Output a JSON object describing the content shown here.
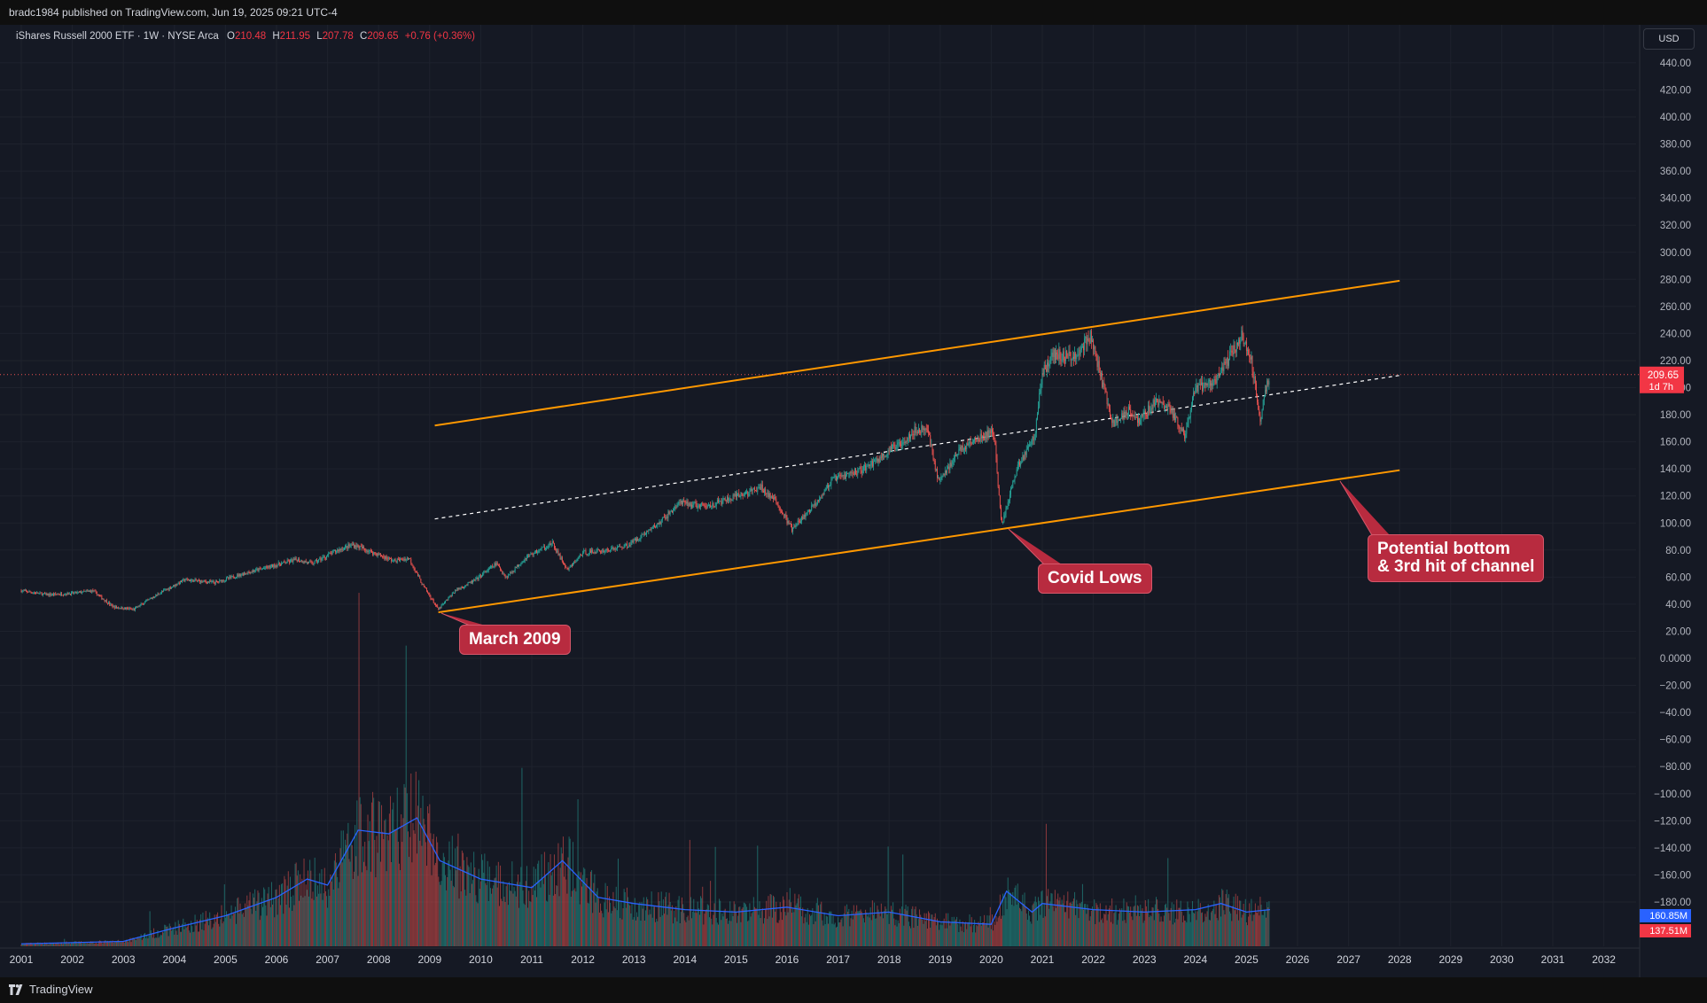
{
  "header": {
    "published": "bradc1984 published on TradingView.com, Jun 19, 2025 09:21 UTC-4"
  },
  "legend": {
    "title": "iShares Russell 2000 ETF · 1W · NYSE Arca",
    "o_label": "O",
    "o": "210.48",
    "h_label": "H",
    "h": "211.95",
    "l_label": "L",
    "l": "207.78",
    "c_label": "C",
    "c": "209.65",
    "change": "+0.76 (+0.36%)"
  },
  "currency_button": "USD",
  "price_tag": {
    "price": "209.65",
    "countdown": "1d 7h"
  },
  "volume_tags": {
    "ma": "160.85M",
    "volume": "137.51M"
  },
  "annotations": {
    "march": "March 2009",
    "covid": "Covid Lows",
    "potential": "Potential bottom\n& 3rd hit of channel"
  },
  "footer": {
    "brand": "TradingView"
  },
  "colors": {
    "up": "#26a69a",
    "down": "#ef5350",
    "channel": "#ff9800",
    "volume_ma": "#2962ff",
    "background": "#151924"
  },
  "chart_data": {
    "type": "candlestick",
    "symbol": "iShares Russell 2000 ETF",
    "timeframe": "1W",
    "x_ticks": [
      "2001",
      "2002",
      "2003",
      "2004",
      "2005",
      "2006",
      "2007",
      "2008",
      "2009",
      "2010",
      "2011",
      "2012",
      "2013",
      "2014",
      "2015",
      "2016",
      "2017",
      "2018",
      "2019",
      "2020",
      "2021",
      "2022",
      "2023",
      "2024",
      "2025",
      "2026",
      "2027",
      "2028",
      "2029",
      "2030",
      "2031",
      "2032"
    ],
    "y_ticks": [
      "440.00",
      "420.00",
      "400.00",
      "380.00",
      "360.00",
      "340.00",
      "320.00",
      "300.00",
      "280.00",
      "260.00",
      "240.00",
      "220.00",
      "200.00",
      "180.00",
      "160.00",
      "140.00",
      "120.00",
      "100.00",
      "80.00",
      "60.00",
      "40.00",
      "20.00",
      "0.0000",
      "−20.00",
      "−40.00",
      "−60.00",
      "−80.00",
      "−100.00",
      "−120.00",
      "−140.00",
      "−160.00",
      "−180.00"
    ],
    "ylim": [
      -190,
      450
    ],
    "last_price": 209.65,
    "price_path": [
      [
        2001.0,
        50
      ],
      [
        2001.5,
        47
      ],
      [
        2002.0,
        48
      ],
      [
        2002.4,
        50
      ],
      [
        2002.8,
        38
      ],
      [
        2003.2,
        36
      ],
      [
        2003.7,
        48
      ],
      [
        2004.2,
        58
      ],
      [
        2004.8,
        56
      ],
      [
        2005.3,
        62
      ],
      [
        2005.9,
        68
      ],
      [
        2006.4,
        73
      ],
      [
        2006.7,
        70
      ],
      [
        2007.2,
        80
      ],
      [
        2007.5,
        84
      ],
      [
        2007.9,
        78
      ],
      [
        2008.3,
        72
      ],
      [
        2008.6,
        74
      ],
      [
        2008.85,
        55
      ],
      [
        2009.17,
        36
      ],
      [
        2009.5,
        50
      ],
      [
        2009.9,
        58
      ],
      [
        2010.3,
        70
      ],
      [
        2010.5,
        60
      ],
      [
        2010.9,
        75
      ],
      [
        2011.4,
        85
      ],
      [
        2011.7,
        65
      ],
      [
        2012.0,
        78
      ],
      [
        2012.5,
        80
      ],
      [
        2012.9,
        84
      ],
      [
        2013.5,
        100
      ],
      [
        2013.9,
        115
      ],
      [
        2014.4,
        112
      ],
      [
        2014.9,
        118
      ],
      [
        2015.5,
        126
      ],
      [
        2015.8,
        115
      ],
      [
        2016.1,
        95
      ],
      [
        2016.5,
        112
      ],
      [
        2016.9,
        132
      ],
      [
        2017.5,
        140
      ],
      [
        2017.9,
        150
      ],
      [
        2018.5,
        168
      ],
      [
        2018.75,
        170
      ],
      [
        2018.97,
        130
      ],
      [
        2019.4,
        155
      ],
      [
        2019.9,
        165
      ],
      [
        2020.05,
        168
      ],
      [
        2020.2,
        98
      ],
      [
        2020.5,
        140
      ],
      [
        2020.85,
        165
      ],
      [
        2021.0,
        210
      ],
      [
        2021.2,
        225
      ],
      [
        2021.6,
        222
      ],
      [
        2021.95,
        238
      ],
      [
        2022.2,
        200
      ],
      [
        2022.4,
        172
      ],
      [
        2022.7,
        185
      ],
      [
        2022.9,
        175
      ],
      [
        2023.2,
        190
      ],
      [
        2023.5,
        185
      ],
      [
        2023.8,
        163
      ],
      [
        2024.0,
        200
      ],
      [
        2024.4,
        205
      ],
      [
        2024.6,
        218
      ],
      [
        2024.9,
        238
      ],
      [
        2025.1,
        220
      ],
      [
        2025.27,
        175
      ],
      [
        2025.38,
        200
      ],
      [
        2025.46,
        209.65
      ]
    ],
    "channel": {
      "upper": [
        [
          2009.1,
          172
        ],
        [
          2028.0,
          279
        ]
      ],
      "middle": [
        [
          2009.1,
          103
        ],
        [
          2028.0,
          209
        ]
      ],
      "lower": [
        [
          2009.17,
          34
        ],
        [
          2028.0,
          139
        ]
      ]
    },
    "volume_ma_path": [
      [
        2001,
        2
      ],
      [
        2003,
        4
      ],
      [
        2004,
        15
      ],
      [
        2005,
        25
      ],
      [
        2006,
        40
      ],
      [
        2006.6,
        55
      ],
      [
        2007,
        50
      ],
      [
        2007.6,
        95
      ],
      [
        2008.2,
        92
      ],
      [
        2008.75,
        105
      ],
      [
        2009.2,
        70
      ],
      [
        2010,
        55
      ],
      [
        2011,
        48
      ],
      [
        2011.6,
        70
      ],
      [
        2012.3,
        40
      ],
      [
        2013,
        35
      ],
      [
        2014,
        30
      ],
      [
        2015,
        28
      ],
      [
        2016,
        32
      ],
      [
        2017,
        25
      ],
      [
        2018,
        28
      ],
      [
        2019,
        20
      ],
      [
        2020,
        18
      ],
      [
        2020.3,
        45
      ],
      [
        2020.8,
        28
      ],
      [
        2021,
        35
      ],
      [
        2022,
        30
      ],
      [
        2023,
        28
      ],
      [
        2024,
        30
      ],
      [
        2024.5,
        35
      ],
      [
        2025,
        28
      ],
      [
        2025.46,
        30
      ]
    ],
    "volume_tags": {
      "ma": "160.85M",
      "volume": "137.51M"
    }
  }
}
